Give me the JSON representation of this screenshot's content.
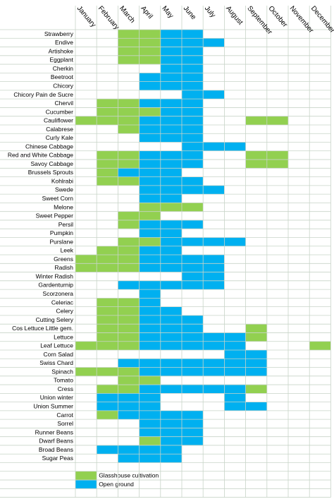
{
  "months": [
    "January",
    "February",
    "March",
    "April",
    "May",
    "June",
    "July",
    "August",
    "September",
    "October",
    "November",
    "December"
  ],
  "legend": [
    {
      "label": "Glasshouse cultivation",
      "color": "#92d050"
    },
    {
      "label": "Open ground",
      "color": "#00b0f0"
    }
  ],
  "rows": [
    {
      "name": "Strawberry",
      "cells": [
        null,
        null,
        0,
        0,
        1,
        1,
        null,
        null,
        null,
        null,
        null,
        null
      ]
    },
    {
      "name": "Endive",
      "cells": [
        null,
        null,
        0,
        0,
        1,
        1,
        1,
        null,
        null,
        null,
        null,
        null
      ]
    },
    {
      "name": "Artishoke",
      "cells": [
        null,
        null,
        0,
        0,
        1,
        1,
        null,
        null,
        null,
        null,
        null,
        null
      ]
    },
    {
      "name": "Eggplant",
      "cells": [
        null,
        null,
        0,
        0,
        1,
        1,
        null,
        null,
        null,
        null,
        null,
        null
      ]
    },
    {
      "name": "Cherkin",
      "cells": [
        null,
        null,
        null,
        null,
        1,
        1,
        null,
        null,
        null,
        null,
        null,
        null
      ]
    },
    {
      "name": "Beetroot",
      "cells": [
        null,
        null,
        null,
        1,
        1,
        1,
        null,
        null,
        null,
        null,
        null,
        null
      ]
    },
    {
      "name": "Chicory",
      "cells": [
        null,
        null,
        null,
        1,
        1,
        1,
        null,
        null,
        null,
        null,
        null,
        null
      ]
    },
    {
      "name": "Chicory  Pain de Sucre",
      "cells": [
        null,
        null,
        null,
        null,
        null,
        1,
        1,
        null,
        null,
        null,
        null,
        null
      ]
    },
    {
      "name": "Chervil",
      "cells": [
        null,
        0,
        0,
        1,
        1,
        1,
        null,
        null,
        null,
        null,
        null,
        null
      ]
    },
    {
      "name": "Cucumber",
      "cells": [
        null,
        0,
        0,
        0,
        1,
        1,
        null,
        null,
        null,
        null,
        null,
        null
      ]
    },
    {
      "name": "Cauliflower",
      "cells": [
        0,
        0,
        0,
        1,
        1,
        1,
        null,
        null,
        0,
        0,
        null,
        null
      ]
    },
    {
      "name": "Calabrese",
      "cells": [
        null,
        null,
        0,
        1,
        1,
        1,
        null,
        null,
        null,
        null,
        null,
        null
      ]
    },
    {
      "name": "Curly Kale",
      "cells": [
        null,
        null,
        null,
        1,
        1,
        1,
        null,
        null,
        null,
        null,
        null,
        null
      ]
    },
    {
      "name": "Chinese Cabbage",
      "cells": [
        null,
        null,
        null,
        null,
        null,
        1,
        1,
        1,
        null,
        null,
        null,
        null
      ]
    },
    {
      "name": "Red and White Cabbage",
      "cells": [
        null,
        0,
        0,
        1,
        1,
        1,
        null,
        null,
        0,
        0,
        null,
        null
      ]
    },
    {
      "name": "Savoy Cabbage",
      "cells": [
        null,
        0,
        0,
        1,
        1,
        1,
        null,
        null,
        0,
        0,
        null,
        null
      ]
    },
    {
      "name": "Brussels Sprouts",
      "cells": [
        null,
        0,
        1,
        1,
        1,
        null,
        null,
        null,
        null,
        null,
        null,
        null
      ]
    },
    {
      "name": "Kohlrabi",
      "cells": [
        null,
        0,
        0,
        1,
        1,
        1,
        null,
        null,
        null,
        null,
        null,
        null
      ]
    },
    {
      "name": "Swede",
      "cells": [
        null,
        null,
        null,
        1,
        1,
        1,
        1,
        null,
        null,
        null,
        null,
        null
      ]
    },
    {
      "name": "Sweet Corn",
      "cells": [
        null,
        null,
        null,
        1,
        1,
        null,
        null,
        null,
        null,
        null,
        null,
        null
      ]
    },
    {
      "name": "Melone",
      "cells": [
        null,
        null,
        null,
        0,
        0,
        0,
        null,
        null,
        null,
        null,
        null,
        null
      ]
    },
    {
      "name": "Sweet Pepper",
      "cells": [
        null,
        null,
        0,
        0,
        null,
        null,
        null,
        null,
        null,
        null,
        null,
        null
      ]
    },
    {
      "name": "Persil",
      "cells": [
        null,
        null,
        0,
        1,
        1,
        1,
        null,
        null,
        null,
        null,
        null,
        null
      ]
    },
    {
      "name": "Pumpkin",
      "cells": [
        null,
        null,
        null,
        1,
        1,
        null,
        null,
        null,
        null,
        null,
        null,
        null
      ]
    },
    {
      "name": "Purslane",
      "cells": [
        null,
        null,
        0,
        0,
        1,
        1,
        1,
        1,
        null,
        null,
        null,
        null
      ]
    },
    {
      "name": "Leek",
      "cells": [
        null,
        0,
        0,
        1,
        1,
        null,
        null,
        null,
        null,
        null,
        null,
        null
      ]
    },
    {
      "name": "Greens",
      "cells": [
        0,
        0,
        0,
        1,
        1,
        1,
        1,
        null,
        null,
        null,
        null,
        null
      ]
    },
    {
      "name": "Radish",
      "cells": [
        0,
        0,
        0,
        1,
        1,
        1,
        1,
        null,
        null,
        null,
        null,
        null
      ]
    },
    {
      "name": "Winter Radish",
      "cells": [
        null,
        null,
        null,
        null,
        null,
        1,
        1,
        null,
        null,
        null,
        null,
        null
      ]
    },
    {
      "name": "Gardenturnip",
      "cells": [
        null,
        null,
        1,
        1,
        1,
        1,
        1,
        null,
        null,
        null,
        null,
        null
      ]
    },
    {
      "name": "Scorzonera",
      "cells": [
        null,
        null,
        null,
        1,
        null,
        null,
        null,
        null,
        null,
        null,
        null,
        null
      ]
    },
    {
      "name": "Celeriac",
      "cells": [
        null,
        0,
        0,
        1,
        null,
        null,
        null,
        null,
        null,
        null,
        null,
        null
      ]
    },
    {
      "name": "Celery",
      "cells": [
        null,
        0,
        0,
        1,
        1,
        null,
        null,
        null,
        null,
        null,
        null,
        null
      ]
    },
    {
      "name": "Cutting Selery",
      "cells": [
        null,
        0,
        0,
        1,
        1,
        1,
        null,
        null,
        null,
        null,
        null,
        null
      ]
    },
    {
      "name": "Cos Lettuce Little gem.",
      "cells": [
        null,
        0,
        0,
        1,
        1,
        1,
        null,
        null,
        0,
        null,
        null,
        null
      ]
    },
    {
      "name": "Lettuce",
      "cells": [
        null,
        0,
        0,
        1,
        1,
        1,
        1,
        1,
        0,
        null,
        null,
        null
      ]
    },
    {
      "name": "Leaf Lettuce",
      "cells": [
        0,
        0,
        0,
        1,
        1,
        1,
        1,
        1,
        null,
        null,
        null,
        0
      ]
    },
    {
      "name": "Corn Salad",
      "cells": [
        null,
        null,
        null,
        null,
        null,
        null,
        null,
        1,
        1,
        null,
        null,
        null
      ]
    },
    {
      "name": "Swiss Chard",
      "cells": [
        null,
        null,
        1,
        1,
        1,
        1,
        1,
        1,
        1,
        null,
        null,
        null
      ]
    },
    {
      "name": "Spinach",
      "cells": [
        0,
        0,
        0,
        1,
        1,
        1,
        1,
        1,
        1,
        null,
        null,
        null
      ]
    },
    {
      "name": "Tomato",
      "cells": [
        null,
        null,
        0,
        0,
        null,
        null,
        null,
        null,
        null,
        null,
        null,
        null
      ]
    },
    {
      "name": "Cress",
      "cells": [
        null,
        0,
        0,
        1,
        1,
        1,
        1,
        1,
        0,
        null,
        null,
        null
      ]
    },
    {
      "name": "Union winter",
      "cells": [
        null,
        1,
        1,
        1,
        null,
        null,
        null,
        1,
        null,
        null,
        null,
        null
      ]
    },
    {
      "name": "Union Summer",
      "cells": [
        null,
        1,
        1,
        1,
        null,
        null,
        null,
        1,
        1,
        null,
        null,
        null
      ]
    },
    {
      "name": "Carrot",
      "cells": [
        null,
        0,
        1,
        1,
        1,
        1,
        null,
        null,
        null,
        null,
        null,
        null
      ]
    },
    {
      "name": "Sorrel",
      "cells": [
        null,
        null,
        null,
        1,
        1,
        1,
        null,
        null,
        null,
        null,
        null,
        null
      ]
    },
    {
      "name": "Runner Beans",
      "cells": [
        null,
        null,
        null,
        1,
        1,
        1,
        null,
        null,
        null,
        null,
        null,
        null
      ]
    },
    {
      "name": "Dwarf Beans",
      "cells": [
        null,
        null,
        null,
        0,
        1,
        1,
        null,
        null,
        null,
        null,
        null,
        null
      ]
    },
    {
      "name": "Broad Beans",
      "cells": [
        null,
        1,
        1,
        1,
        1,
        null,
        null,
        null,
        null,
        null,
        null,
        null
      ]
    },
    {
      "name": "Sugar Peas",
      "cells": [
        null,
        null,
        1,
        1,
        1,
        null,
        null,
        null,
        null,
        null,
        null,
        null
      ]
    }
  ]
}
